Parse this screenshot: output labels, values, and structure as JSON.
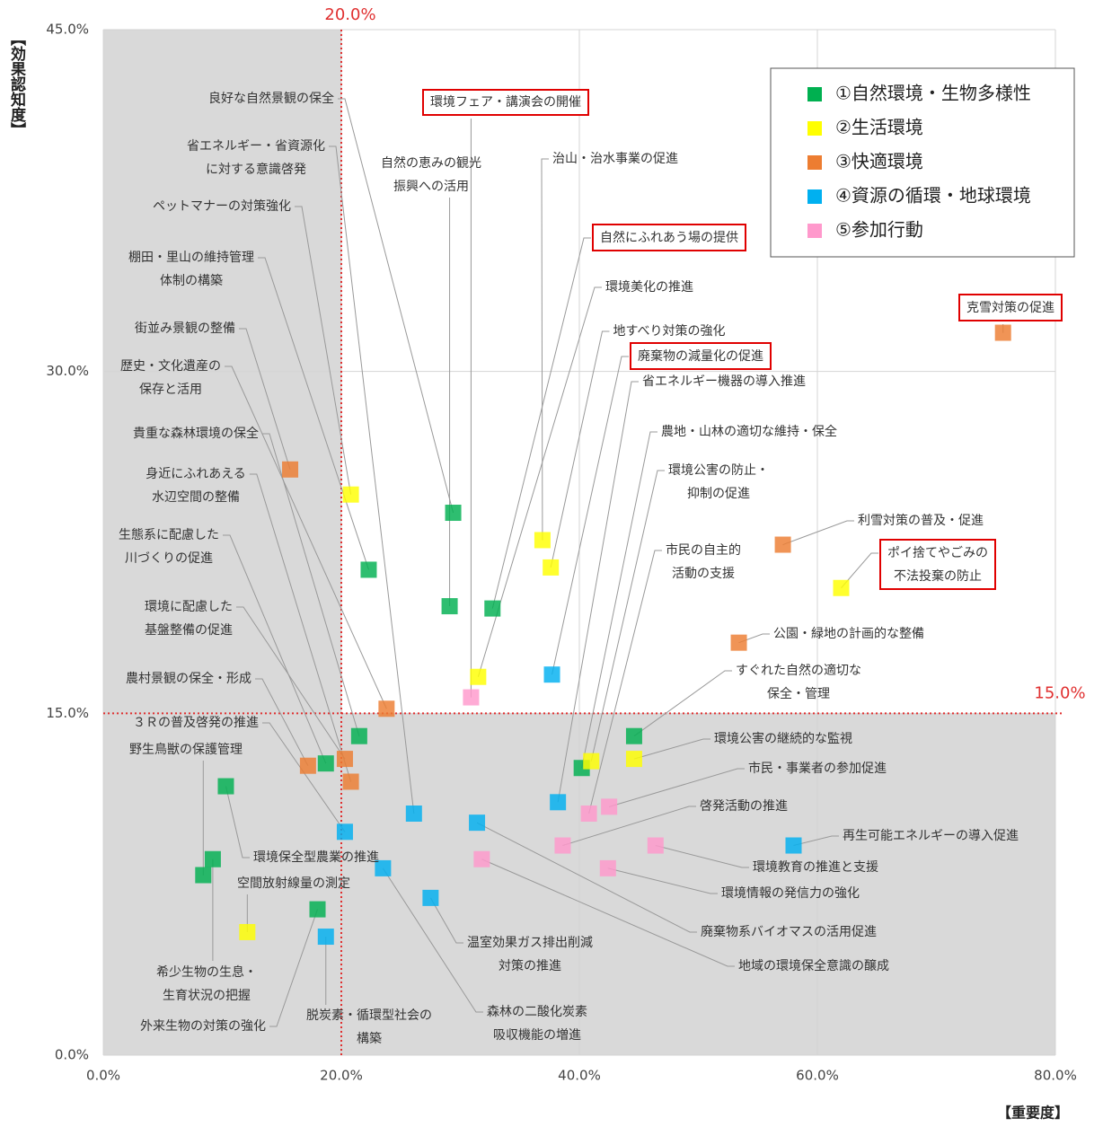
{
  "chart_data": {
    "type": "scatter",
    "y_label": "【効果認知度】",
    "x_label": "【重要度】",
    "xlim": [
      0,
      80
    ],
    "ylim": [
      0,
      45
    ],
    "xticks": [
      {
        "value": 0,
        "label": "0.0%"
      },
      {
        "value": 20,
        "label": "20.0%"
      },
      {
        "value": 40,
        "label": "40.0%"
      },
      {
        "value": 60,
        "label": "60.0%"
      },
      {
        "value": 80,
        "label": "80.0%"
      }
    ],
    "yticks": [
      {
        "value": 0,
        "label": "0.0%"
      },
      {
        "value": 15,
        "label": "15.0%"
      },
      {
        "value": 30,
        "label": "30.0%"
      },
      {
        "value": 45,
        "label": "45.0%"
      }
    ],
    "grid": true,
    "legend": "upper right",
    "thresholds": {
      "x": {
        "value": 20,
        "label": "20.0%"
      },
      "y": {
        "value": 15,
        "label": "15.0%"
      }
    },
    "threshold_color": "#e03030",
    "shade_color": "#d9d9d9",
    "series": [
      {
        "name": "①自然環境・生物多様性",
        "color": "#00b050",
        "x": [
          29.4,
          22.3,
          29.1,
          32.7,
          21.5,
          18.7,
          10.3,
          9.2,
          8.4,
          18.0,
          40.2,
          44.6
        ],
        "values": [
          23.8,
          21.3,
          19.7,
          19.6,
          14.0,
          12.8,
          11.8,
          8.6,
          7.9,
          6.4,
          12.6,
          14.0
        ],
        "point_labels": [
          [
            "良好な自然景観の保全"
          ],
          [
            "棚田・里山の維持管理",
            "体制の構築"
          ],
          [
            "自然の恵みの観光",
            "振興への活用"
          ],
          [
            "自然にふれあう場の提供"
          ],
          [
            "貴重な森林環境の保全"
          ],
          [
            "生態系に配慮した",
            "川づくりの促進"
          ],
          [
            "環境保全型農業の推進"
          ],
          [
            "希少生物の生息・",
            "生育状況の把握"
          ],
          [
            "野生鳥獣の保護管理"
          ],
          [
            "外来生物の対策の強化"
          ],
          [
            "農地・山林の適切な維持・保全"
          ],
          [
            "すぐれた自然の適切な",
            "保全・管理"
          ]
        ]
      },
      {
        "name": "②生活環境",
        "color": "#ffff00",
        "x": [
          20.8,
          36.9,
          37.6,
          31.5,
          62.0,
          41.0,
          44.6,
          12.1
        ],
        "values": [
          24.6,
          22.6,
          21.4,
          16.6,
          20.5,
          12.9,
          13.0,
          5.4
        ],
        "point_labels": [
          [
            "ペットマナーの対策強化"
          ],
          [
            "治山・治水事業の促進"
          ],
          [
            "地すべり対策の強化"
          ],
          [
            "環境美化の推進"
          ],
          [
            "ポイ捨てやごみの",
            "不法投棄の防止"
          ],
          [
            "環境公害の防止・",
            "抑制の促進"
          ],
          [
            "環境公害の継続的な監視"
          ],
          [
            "空間放射線量の測定"
          ]
        ]
      },
      {
        "name": "③快適環境",
        "color": "#ed7d31",
        "x": [
          15.7,
          23.8,
          20.3,
          17.2,
          20.8,
          57.1,
          53.4,
          75.6
        ],
        "values": [
          25.7,
          15.2,
          13.0,
          12.7,
          12.0,
          22.4,
          18.1,
          31.7
        ],
        "point_labels": [
          [
            "街並み景観の整備"
          ],
          [
            "歴史・文化遺産の",
            "保存と活用"
          ],
          [
            "環境に配慮した",
            "基盤整備の促進"
          ],
          [
            "農村景観の保全・形成"
          ],
          [
            "身近にふれあえる",
            "水辺空間の整備"
          ],
          [
            "利雪対策の普及・促進"
          ],
          [
            "公園・緑地の計画的な整備"
          ],
          [
            "克雪対策の促進"
          ]
        ]
      },
      {
        "name": "④資源の循環・地球環境",
        "color": "#00b0f0",
        "x": [
          37.7,
          38.2,
          26.1,
          31.4,
          20.3,
          23.5,
          27.5,
          18.7,
          58.0
        ],
        "values": [
          16.7,
          11.1,
          10.6,
          10.2,
          9.8,
          8.2,
          6.9,
          5.2,
          9.2
        ],
        "point_labels": [
          [
            "廃棄物の減量化の促進"
          ],
          [
            "省エネルギー機器の導入推進"
          ],
          [
            "省エネルギー・省資源化",
            "に対する意識啓発"
          ],
          [
            "廃棄物系バイオマスの活用促進"
          ],
          [
            "３Ｒの普及啓発の推進"
          ],
          [
            "森林の二酸化炭素",
            "吸収機能の増進"
          ],
          [
            "温室効果ガス排出削減",
            "対策の推進"
          ],
          [
            "脱炭素・循環型社会の",
            "構築"
          ],
          [
            "再生可能エネルギーの導入促進"
          ]
        ]
      },
      {
        "name": "⑤参加行動",
        "color": "#ff99cc",
        "x": [
          30.9,
          40.8,
          42.5,
          38.6,
          46.4,
          31.8,
          42.4
        ],
        "values": [
          15.7,
          10.6,
          10.9,
          9.2,
          9.2,
          8.6,
          8.2
        ],
        "point_labels": [
          [
            "環境フェア・講演会の開催"
          ],
          [
            "市民の自主的",
            "活動の支援"
          ],
          [
            "市民・事業者の参加促進"
          ],
          [
            "啓発活動の推進"
          ],
          [
            "環境教育の推進と支援"
          ],
          [
            "地域の環境保全意識の醸成"
          ],
          [
            "環境情報の発信力の強化"
          ]
        ]
      }
    ]
  }
}
